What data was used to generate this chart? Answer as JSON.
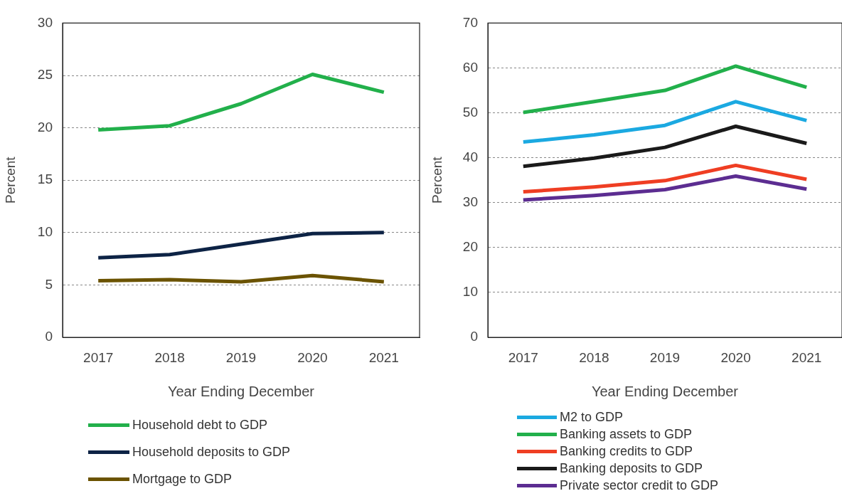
{
  "chart_data": [
    {
      "type": "line",
      "xlabel": "Year Ending December",
      "ylabel": "Percent",
      "categories": [
        "2017",
        "2018",
        "2019",
        "2020",
        "2021"
      ],
      "ylim": [
        0,
        30
      ],
      "yticks": [
        0,
        5,
        10,
        15,
        20,
        25,
        30
      ],
      "grid": "y",
      "legend": "bottom",
      "marker": "none",
      "series": [
        {
          "name": "Household debt to GDP",
          "color": "#22b04b",
          "values": [
            19.8,
            20.2,
            22.3,
            25.1,
            23.4
          ]
        },
        {
          "name": "Household deposits to GDP",
          "color": "#0d2345",
          "values": [
            7.6,
            7.9,
            8.9,
            9.9,
            10.0
          ]
        },
        {
          "name": "Mortgage to GDP",
          "color": "#6b5300",
          "values": [
            5.4,
            5.5,
            5.3,
            5.9,
            5.3
          ]
        }
      ]
    },
    {
      "type": "line",
      "xlabel": "Year Ending December",
      "ylabel": "Percent",
      "categories": [
        "2017",
        "2018",
        "2019",
        "2020",
        "2021"
      ],
      "ylim": [
        0,
        70
      ],
      "yticks": [
        0,
        10,
        20,
        30,
        40,
        50,
        60,
        70
      ],
      "grid": "y",
      "legend": "bottom",
      "marker": "none",
      "series": [
        {
          "name": "M2 to GDP",
          "color": "#1ba9e1",
          "values": [
            43.5,
            45.1,
            47.2,
            52.5,
            48.3
          ]
        },
        {
          "name": "Banking assets to GDP",
          "color": "#22b04b",
          "values": [
            50.1,
            52.5,
            55.0,
            60.4,
            55.7
          ]
        },
        {
          "name": "Banking credits to GDP",
          "color": "#ef3e23",
          "values": [
            32.4,
            33.5,
            34.9,
            38.3,
            35.2
          ]
        },
        {
          "name": "Banking deposits to GDP",
          "color": "#1a1a1a",
          "values": [
            38.1,
            39.9,
            42.3,
            47.0,
            43.2
          ]
        },
        {
          "name": "Private sector credit to GDP",
          "color": "#5c2d91",
          "values": [
            30.6,
            31.6,
            32.9,
            35.9,
            33.0
          ]
        }
      ]
    }
  ]
}
